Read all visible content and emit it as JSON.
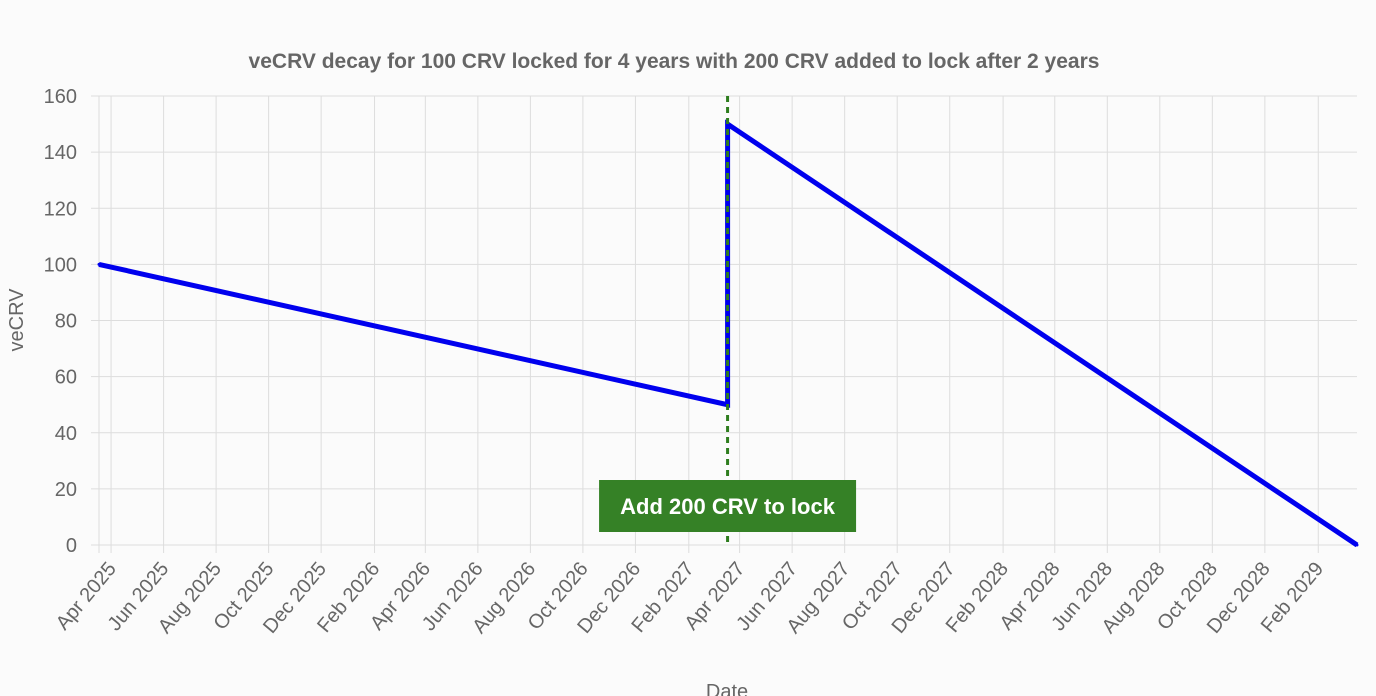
{
  "chart_data": {
    "type": "line",
    "title": "veCRV decay for 100 CRV locked for 4 years with 200 CRV added to lock after 2 years",
    "xlabel": "Date",
    "ylabel": "veCRV",
    "x_ticks": [
      "Apr 2025",
      "Jun 2025",
      "Aug 2025",
      "Oct 2025",
      "Dec 2025",
      "Feb 2026",
      "Apr 2026",
      "Jun 2026",
      "Aug 2026",
      "Oct 2026",
      "Dec 2026",
      "Feb 2027",
      "Apr 2027",
      "Jun 2027",
      "Aug 2027",
      "Oct 2027",
      "Dec 2027",
      "Feb 2028",
      "Apr 2028",
      "Jun 2028",
      "Aug 2028",
      "Oct 2028",
      "Dec 2028",
      "Feb 2029"
    ],
    "y_ticks": [
      0,
      20,
      40,
      60,
      80,
      100,
      120,
      140,
      160
    ],
    "xlim": [
      "2025-03-18",
      "2029-03-18"
    ],
    "ylim": [
      0,
      160
    ],
    "grid": true,
    "series": [
      {
        "color": "#0000ee",
        "points": [
          {
            "x": "2025-03-18",
            "y": 100
          },
          {
            "x": "2027-03-18",
            "y": 50
          },
          {
            "x": "2027-03-18",
            "y": 150
          },
          {
            "x": "2029-03-18",
            "y": 0
          }
        ]
      }
    ],
    "annotation": {
      "x": "2027-03-18",
      "label": "Add 200 CRV to lock",
      "line_color": "#2e7d1e",
      "box_color": "#358126"
    }
  }
}
